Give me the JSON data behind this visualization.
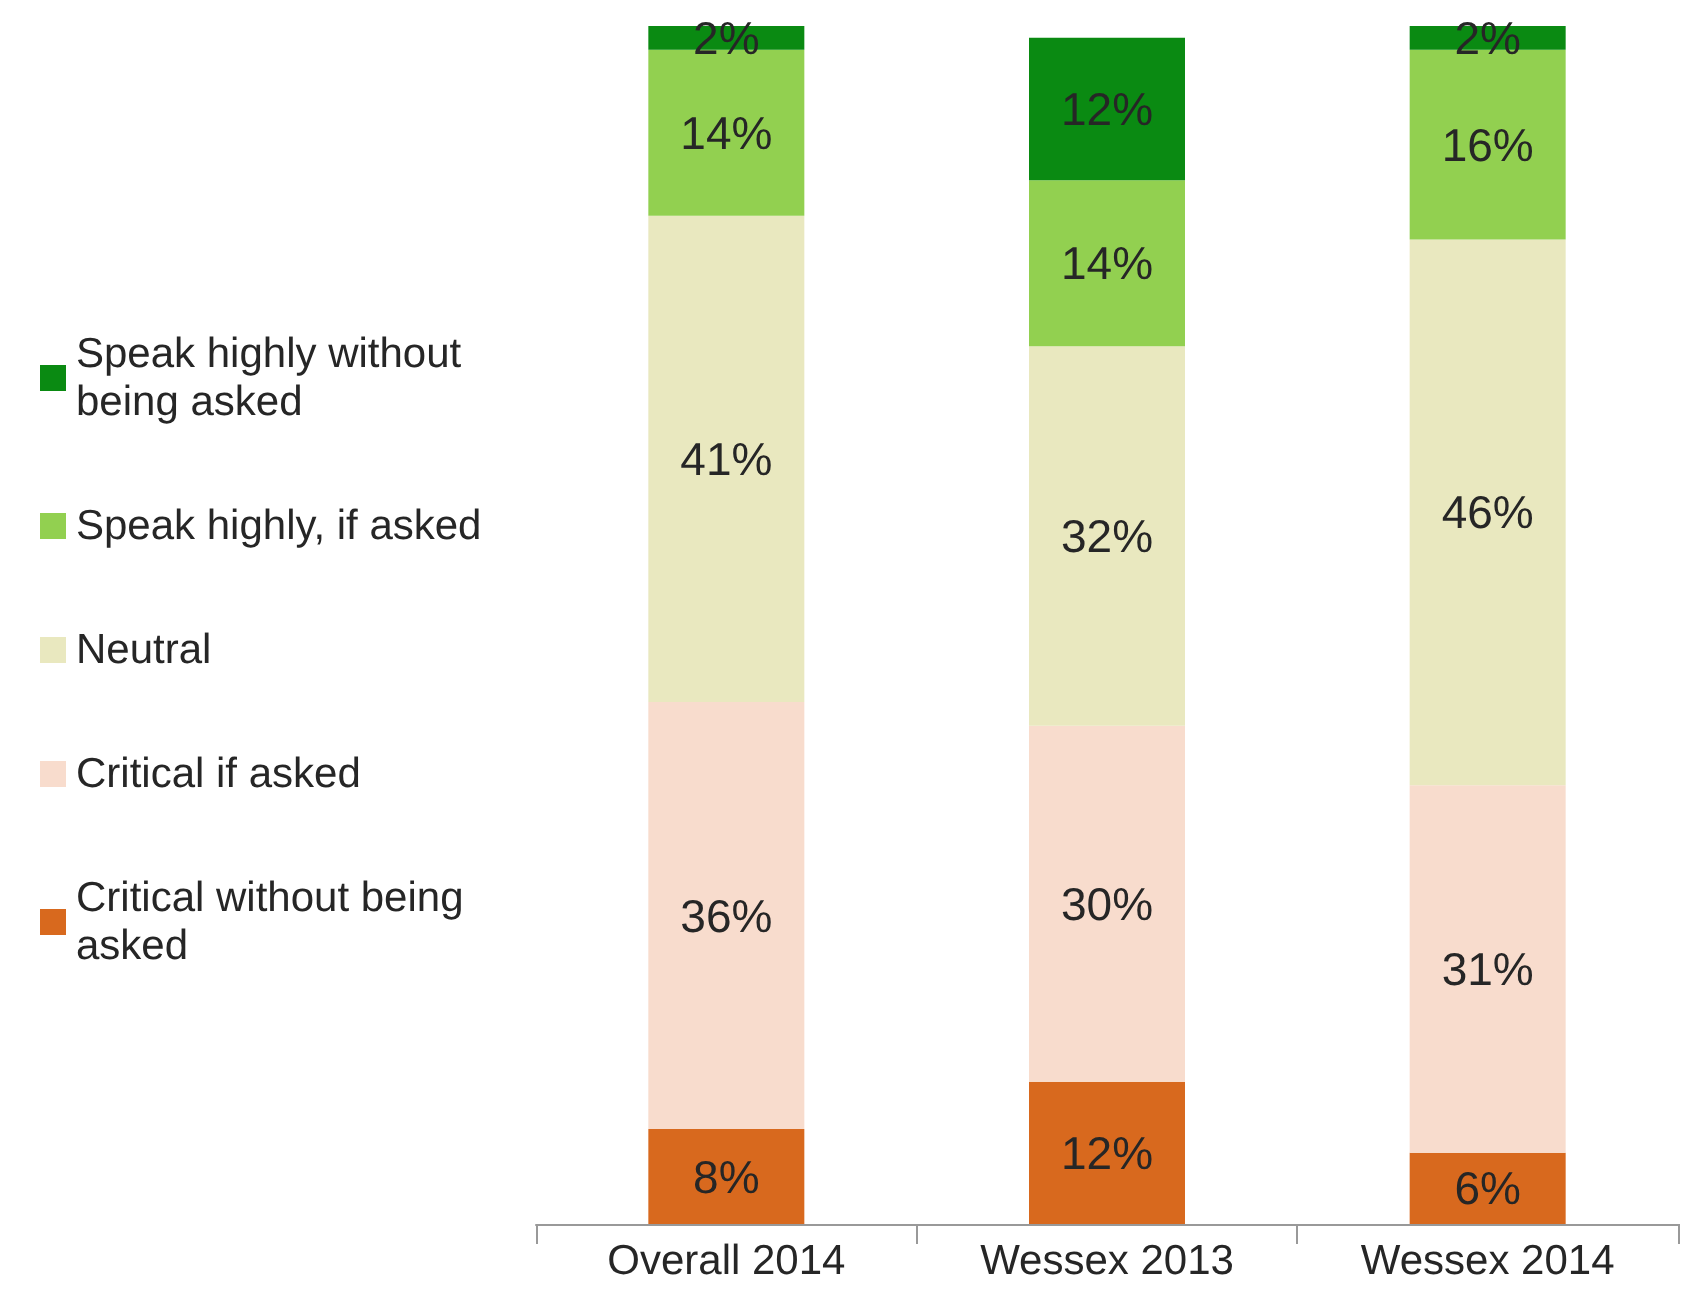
{
  "chart_data": {
    "type": "bar",
    "stacked": true,
    "legend": "left",
    "grid": false,
    "categories": [
      "Overall 2014",
      "Wessex 2013",
      "Wessex 2014"
    ],
    "series": [
      {
        "name": "Critical without being asked",
        "color": "#d8691e",
        "values": [
          8,
          12,
          6
        ],
        "value_labels": [
          "8%",
          "12%",
          "6%"
        ]
      },
      {
        "name": "Critical if asked",
        "color": "#f8dccd",
        "values": [
          36,
          30,
          31
        ],
        "value_labels": [
          "36%",
          "30%",
          "31%"
        ]
      },
      {
        "name": "Neutral",
        "color": "#e9e8bf",
        "values": [
          41,
          32,
          46
        ],
        "value_labels": [
          "41%",
          "32%",
          "46%"
        ]
      },
      {
        "name": "Speak highly, if asked",
        "color": "#92d050",
        "values": [
          14,
          14,
          16
        ],
        "value_labels": [
          "14%",
          "14%",
          "16%"
        ]
      },
      {
        "name": "Speak highly without being asked",
        "color": "#0a8a12",
        "values": [
          2,
          12,
          2
        ],
        "value_labels": [
          "2%",
          "12%",
          "2%"
        ]
      }
    ]
  }
}
